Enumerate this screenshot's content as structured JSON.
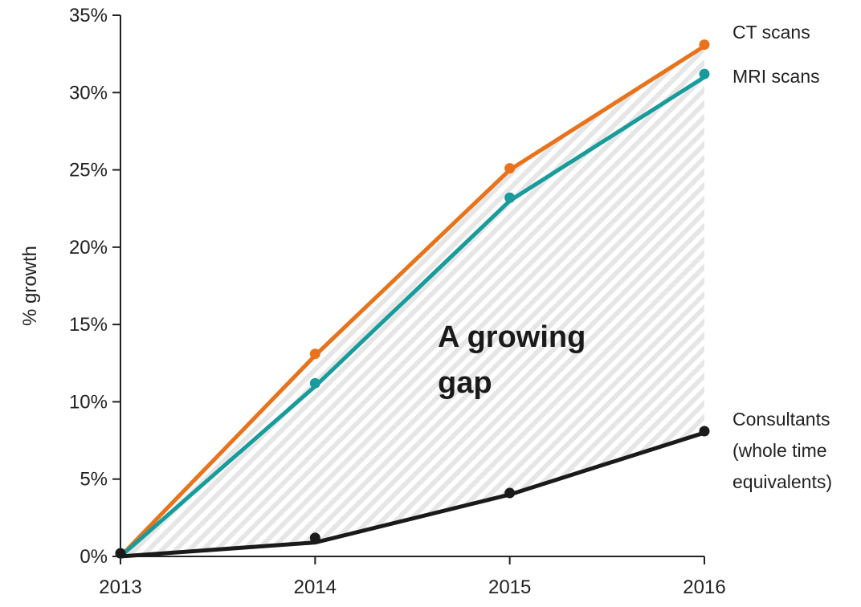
{
  "chart_data": {
    "type": "line",
    "title": "",
    "xlabel": "",
    "ylabel": "% growth",
    "x": [
      "2013",
      "2014",
      "2015",
      "2016"
    ],
    "ylim": [
      0,
      35
    ],
    "yticks": [
      0,
      5,
      10,
      15,
      20,
      25,
      30,
      35
    ],
    "ytick_labels": [
      "0%",
      "5%",
      "10%",
      "15%",
      "20%",
      "25%",
      "30%",
      "35%"
    ],
    "grid": false,
    "legend": "direct labels at line ends (right)",
    "series": [
      {
        "name": "CT scans",
        "label_lines": [
          "CT scans"
        ],
        "color": "#E8731A",
        "values": [
          0,
          13,
          25,
          33
        ],
        "points": [
          0.2,
          13.1,
          25.1,
          33.1
        ]
      },
      {
        "name": "MRI scans",
        "label_lines": [
          "MRI scans"
        ],
        "color": "#179B9B",
        "values": [
          0,
          11,
          23,
          31
        ],
        "points": [
          0.2,
          11.2,
          23.2,
          31.2
        ]
      },
      {
        "name": "Consultants (whole time equivalents)",
        "label_lines": [
          "Consultants",
          "(whole time",
          "equivalents)"
        ],
        "color": "#1A1A1A",
        "values": [
          0,
          0.9,
          4,
          8
        ],
        "points": [
          0.2,
          1.2,
          4.1,
          8.1
        ]
      }
    ],
    "gap_fill": "hatched light grey area between top series and bottom series",
    "annotation_lines": [
      "A growing",
      "gap"
    ]
  }
}
